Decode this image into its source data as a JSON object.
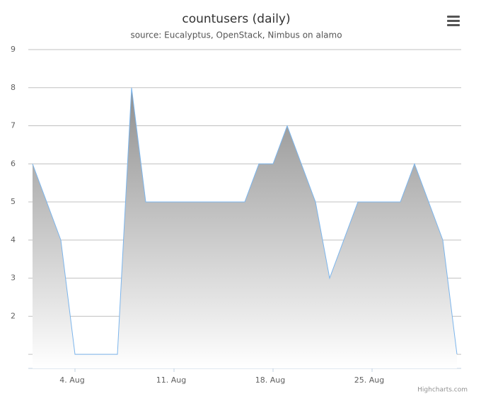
{
  "chart_data": {
    "type": "area",
    "title": "countusers (daily)",
    "subtitle": "source: Eucalyptus, OpenStack, Nimbus on alamo",
    "credits": "Highcharts.com",
    "x": [
      1,
      2,
      3,
      4,
      5,
      6,
      7,
      8,
      9,
      10,
      11,
      12,
      13,
      14,
      15,
      16,
      17,
      18,
      19,
      20,
      21,
      22,
      23,
      24,
      25,
      26,
      27,
      28,
      29,
      30,
      31
    ],
    "series": [
      {
        "name": "countusers",
        "color": "#7cb5ec",
        "values": [
          6,
          5,
          4,
          1,
          1,
          1,
          1,
          8,
          5,
          5,
          5,
          5,
          5,
          5,
          5,
          5,
          6,
          6,
          7,
          6,
          5,
          3,
          4,
          5,
          5,
          5,
          5,
          6,
          5,
          4,
          1
        ]
      }
    ],
    "xlim": [
      0.7,
      31.3
    ],
    "xticks": [
      {
        "value": 4,
        "label": "4. Aug"
      },
      {
        "value": 11,
        "label": "11. Aug"
      },
      {
        "value": 18,
        "label": "18. Aug"
      },
      {
        "value": 25,
        "label": "25. Aug"
      }
    ],
    "ylim": [
      0.63,
      9
    ],
    "yticks": [
      1,
      2,
      3,
      4,
      5,
      6,
      7,
      8,
      9
    ],
    "hide_first_ytick_label": true,
    "grid": true
  }
}
